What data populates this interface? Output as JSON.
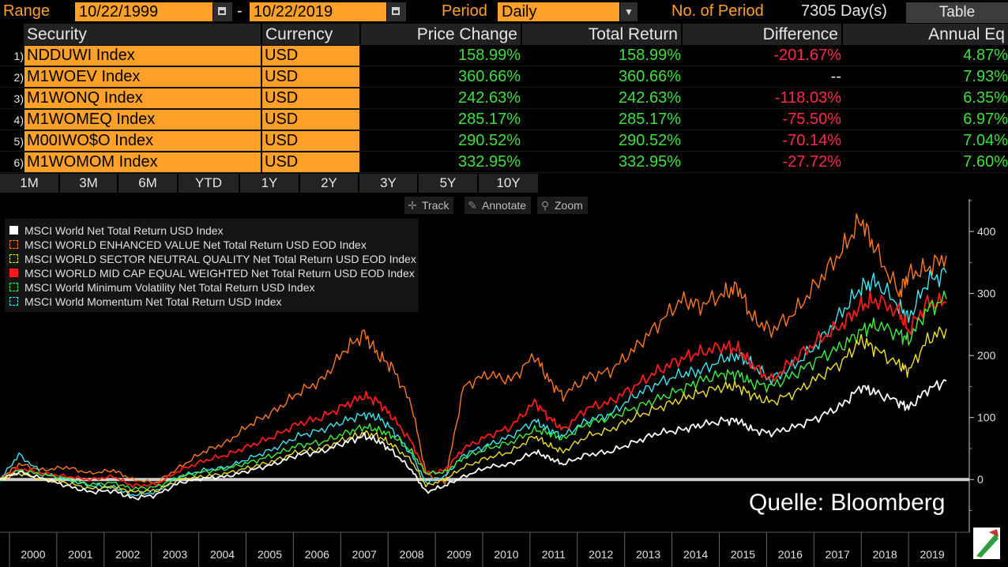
{
  "toolbar": {
    "range_label": "Range",
    "start_date": "10/22/1999",
    "date_sep": "-",
    "end_date": "10/22/2019",
    "period_label": "Period",
    "period_value": "Daily",
    "periods_label": "No. of Period",
    "periods_value": "7305 Day(s)",
    "table_button": "Table"
  },
  "table": {
    "headers": [
      "Security",
      "Currency",
      "Price Change",
      "Total Return",
      "Difference",
      "Annual Eq"
    ],
    "rows": [
      {
        "num": "1)",
        "security": "NDDUWI Index",
        "currency": "USD",
        "price_change": "158.99%",
        "total_return": "158.99%",
        "difference": "-201.67%",
        "annual": "4.87%"
      },
      {
        "num": "2)",
        "security": "M1WOEV Index",
        "currency": "USD",
        "price_change": "360.66%",
        "total_return": "360.66%",
        "difference": "--",
        "annual": "7.93%"
      },
      {
        "num": "3)",
        "security": "M1WONQ Index",
        "currency": "USD",
        "price_change": "242.63%",
        "total_return": "242.63%",
        "difference": "-118.03%",
        "annual": "6.35%"
      },
      {
        "num": "4)",
        "security": "M1WOMEQ Index",
        "currency": "USD",
        "price_change": "285.17%",
        "total_return": "285.17%",
        "difference": "-75.50%",
        "annual": "6.97%"
      },
      {
        "num": "5)",
        "security": "M00IWO$O Index",
        "currency": "USD",
        "price_change": "290.52%",
        "total_return": "290.52%",
        "difference": "-70.14%",
        "annual": "7.04%"
      },
      {
        "num": "6)",
        "security": "M1WOMOM Index",
        "currency": "USD",
        "price_change": "332.95%",
        "total_return": "332.95%",
        "difference": "-27.72%",
        "annual": "7.60%"
      }
    ]
  },
  "period_buttons": [
    "1M",
    "3M",
    "6M",
    "YTD",
    "1Y",
    "2Y",
    "3Y",
    "5Y",
    "10Y"
  ],
  "chart_tools": {
    "track": "Track",
    "annotate": "Annotate",
    "zoom": "Zoom"
  },
  "colors": {
    "accent": "#ffa028",
    "positive": "#3ee03e",
    "negative": "#ff2a4a",
    "white_series": "#ffffff",
    "value_series": "#ff7a1e",
    "quality_series": "#f0e030",
    "midcap_series": "#ff1a1a",
    "minvol_series": "#3ef03e",
    "momentum_series": "#3ee8f0"
  },
  "source_label": "Quelle: Bloomberg",
  "chart_data": {
    "type": "line",
    "title": "",
    "xlabel": "",
    "ylabel": "",
    "grid": false,
    "legend_position": "top-left",
    "x": [
      1999.8,
      2000.2,
      2000.7,
      2001.2,
      2001.7,
      2002.2,
      2002.6,
      2003.1,
      2003.6,
      2004.1,
      2004.6,
      2005.1,
      2005.6,
      2006.1,
      2006.6,
      2007.1,
      2007.5,
      2007.8,
      2008.1,
      2008.5,
      2008.8,
      2009.2,
      2009.6,
      2010.1,
      2010.6,
      2011.1,
      2011.4,
      2011.7,
      2012.2,
      2012.7,
      2013.2,
      2013.7,
      2014.2,
      2014.6,
      2015.1,
      2015.4,
      2015.7,
      2016.1,
      2016.6,
      2017.1,
      2017.6,
      2018.0,
      2018.3,
      2018.8,
      2019.0,
      2019.4,
      2019.8
    ],
    "xticks": [
      "2000",
      "2001",
      "2002",
      "2003",
      "2004",
      "2005",
      "2006",
      "2007",
      "2008",
      "2009",
      "2010",
      "2011",
      "2012",
      "2013",
      "2014",
      "2015",
      "2016",
      "2017",
      "2018",
      "2019"
    ],
    "yticks": [
      0,
      100,
      200,
      300,
      400
    ],
    "ylim": [
      -85,
      460
    ],
    "xlim": [
      1999.8,
      2020.2
    ],
    "series": [
      {
        "name": "MSCI World Net Total Return USD Index",
        "color": "#ffffff",
        "dashed": false,
        "values": [
          0,
          12,
          2,
          -10,
          -20,
          -18,
          -30,
          -25,
          -5,
          2,
          5,
          15,
          25,
          40,
          45,
          60,
          70,
          62,
          45,
          15,
          -20,
          -10,
          5,
          20,
          25,
          45,
          35,
          25,
          40,
          45,
          60,
          75,
          80,
          88,
          95,
          95,
          80,
          75,
          85,
          100,
          120,
          150,
          140,
          125,
          115,
          145,
          159
        ]
      },
      {
        "name": "MSCI WORLD ENHANCED VALUE Net Total Return USD EOD Index",
        "color": "#ff7a1e",
        "dashed": true,
        "values": [
          0,
          25,
          15,
          20,
          10,
          15,
          0,
          -5,
          20,
          45,
          60,
          90,
          110,
          140,
          160,
          210,
          235,
          200,
          180,
          120,
          10,
          -5,
          150,
          170,
          160,
          200,
          160,
          135,
          165,
          175,
          210,
          250,
          290,
          280,
          300,
          310,
          260,
          240,
          270,
          320,
          370,
          420,
          370,
          300,
          330,
          340,
          361
        ]
      },
      {
        "name": "MSCI WORLD SECTOR NEUTRAL QUALITY Net Total Return USD EOD Index",
        "color": "#f0e030",
        "dashed": true,
        "values": [
          0,
          10,
          0,
          -5,
          -15,
          -12,
          -20,
          -18,
          0,
          5,
          10,
          20,
          30,
          45,
          50,
          65,
          75,
          70,
          55,
          30,
          -10,
          0,
          20,
          35,
          45,
          70,
          55,
          45,
          70,
          80,
          100,
          115,
          130,
          140,
          150,
          150,
          135,
          125,
          140,
          165,
          190,
          225,
          210,
          185,
          175,
          225,
          243
        ]
      },
      {
        "name": "MSCI WORLD MID CAP EQUAL WEIGHTED Net Total Return USD EOD Index",
        "color": "#ff1a1a",
        "dashed": false,
        "values": [
          0,
          18,
          10,
          5,
          0,
          5,
          -10,
          -8,
          15,
          30,
          40,
          55,
          70,
          90,
          100,
          120,
          135,
          125,
          100,
          60,
          10,
          15,
          50,
          70,
          85,
          125,
          100,
          80,
          115,
          125,
          150,
          175,
          195,
          205,
          215,
          210,
          185,
          160,
          195,
          225,
          250,
          280,
          290,
          270,
          240,
          285,
          285
        ]
      },
      {
        "name": "MSCI World Minimum Volatility Net Total Return USD Index",
        "color": "#3ef03e",
        "dashed": true,
        "values": [
          0,
          15,
          8,
          2,
          -8,
          -5,
          -15,
          -12,
          5,
          12,
          18,
          28,
          40,
          55,
          60,
          75,
          85,
          80,
          70,
          45,
          10,
          12,
          35,
          50,
          60,
          80,
          75,
          65,
          90,
          100,
          115,
          130,
          145,
          160,
          170,
          170,
          155,
          150,
          170,
          195,
          215,
          240,
          250,
          235,
          225,
          275,
          291
        ]
      },
      {
        "name": "MSCI World Momentum Net Total Return USD Index",
        "color": "#3ee8f0",
        "dashed": true,
        "values": [
          0,
          40,
          10,
          0,
          -10,
          -12,
          -25,
          -20,
          5,
          15,
          20,
          35,
          50,
          70,
          80,
          95,
          105,
          100,
          80,
          40,
          -5,
          5,
          40,
          55,
          70,
          95,
          80,
          70,
          95,
          105,
          135,
          155,
          170,
          175,
          195,
          200,
          185,
          160,
          185,
          220,
          270,
          310,
          320,
          280,
          260,
          320,
          333
        ]
      }
    ]
  }
}
